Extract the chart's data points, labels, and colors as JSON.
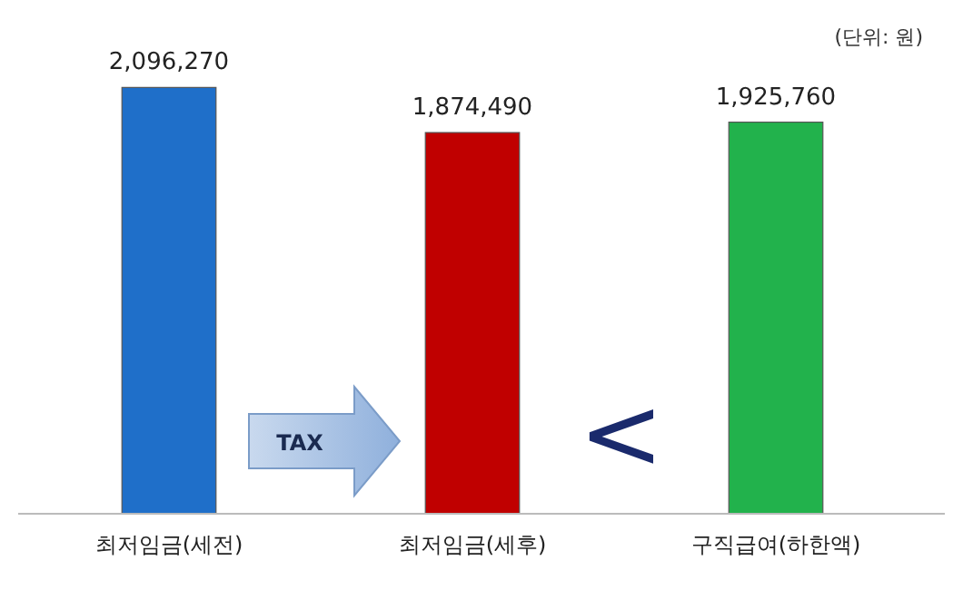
{
  "chart_data": {
    "type": "bar",
    "categories": [
      "최저임금(세전)",
      "최저임금(세후)",
      "구직급여(하한액)"
    ],
    "values": [
      2096270,
      1874490,
      1925760
    ],
    "colors": [
      "#1f6fc9",
      "#c00000",
      "#22b24c"
    ],
    "value_labels": [
      "2,096,270",
      "1,874,490",
      "1,925,760"
    ],
    "annotations": [
      "(단위: 원)",
      "TAX",
      "<"
    ]
  }
}
